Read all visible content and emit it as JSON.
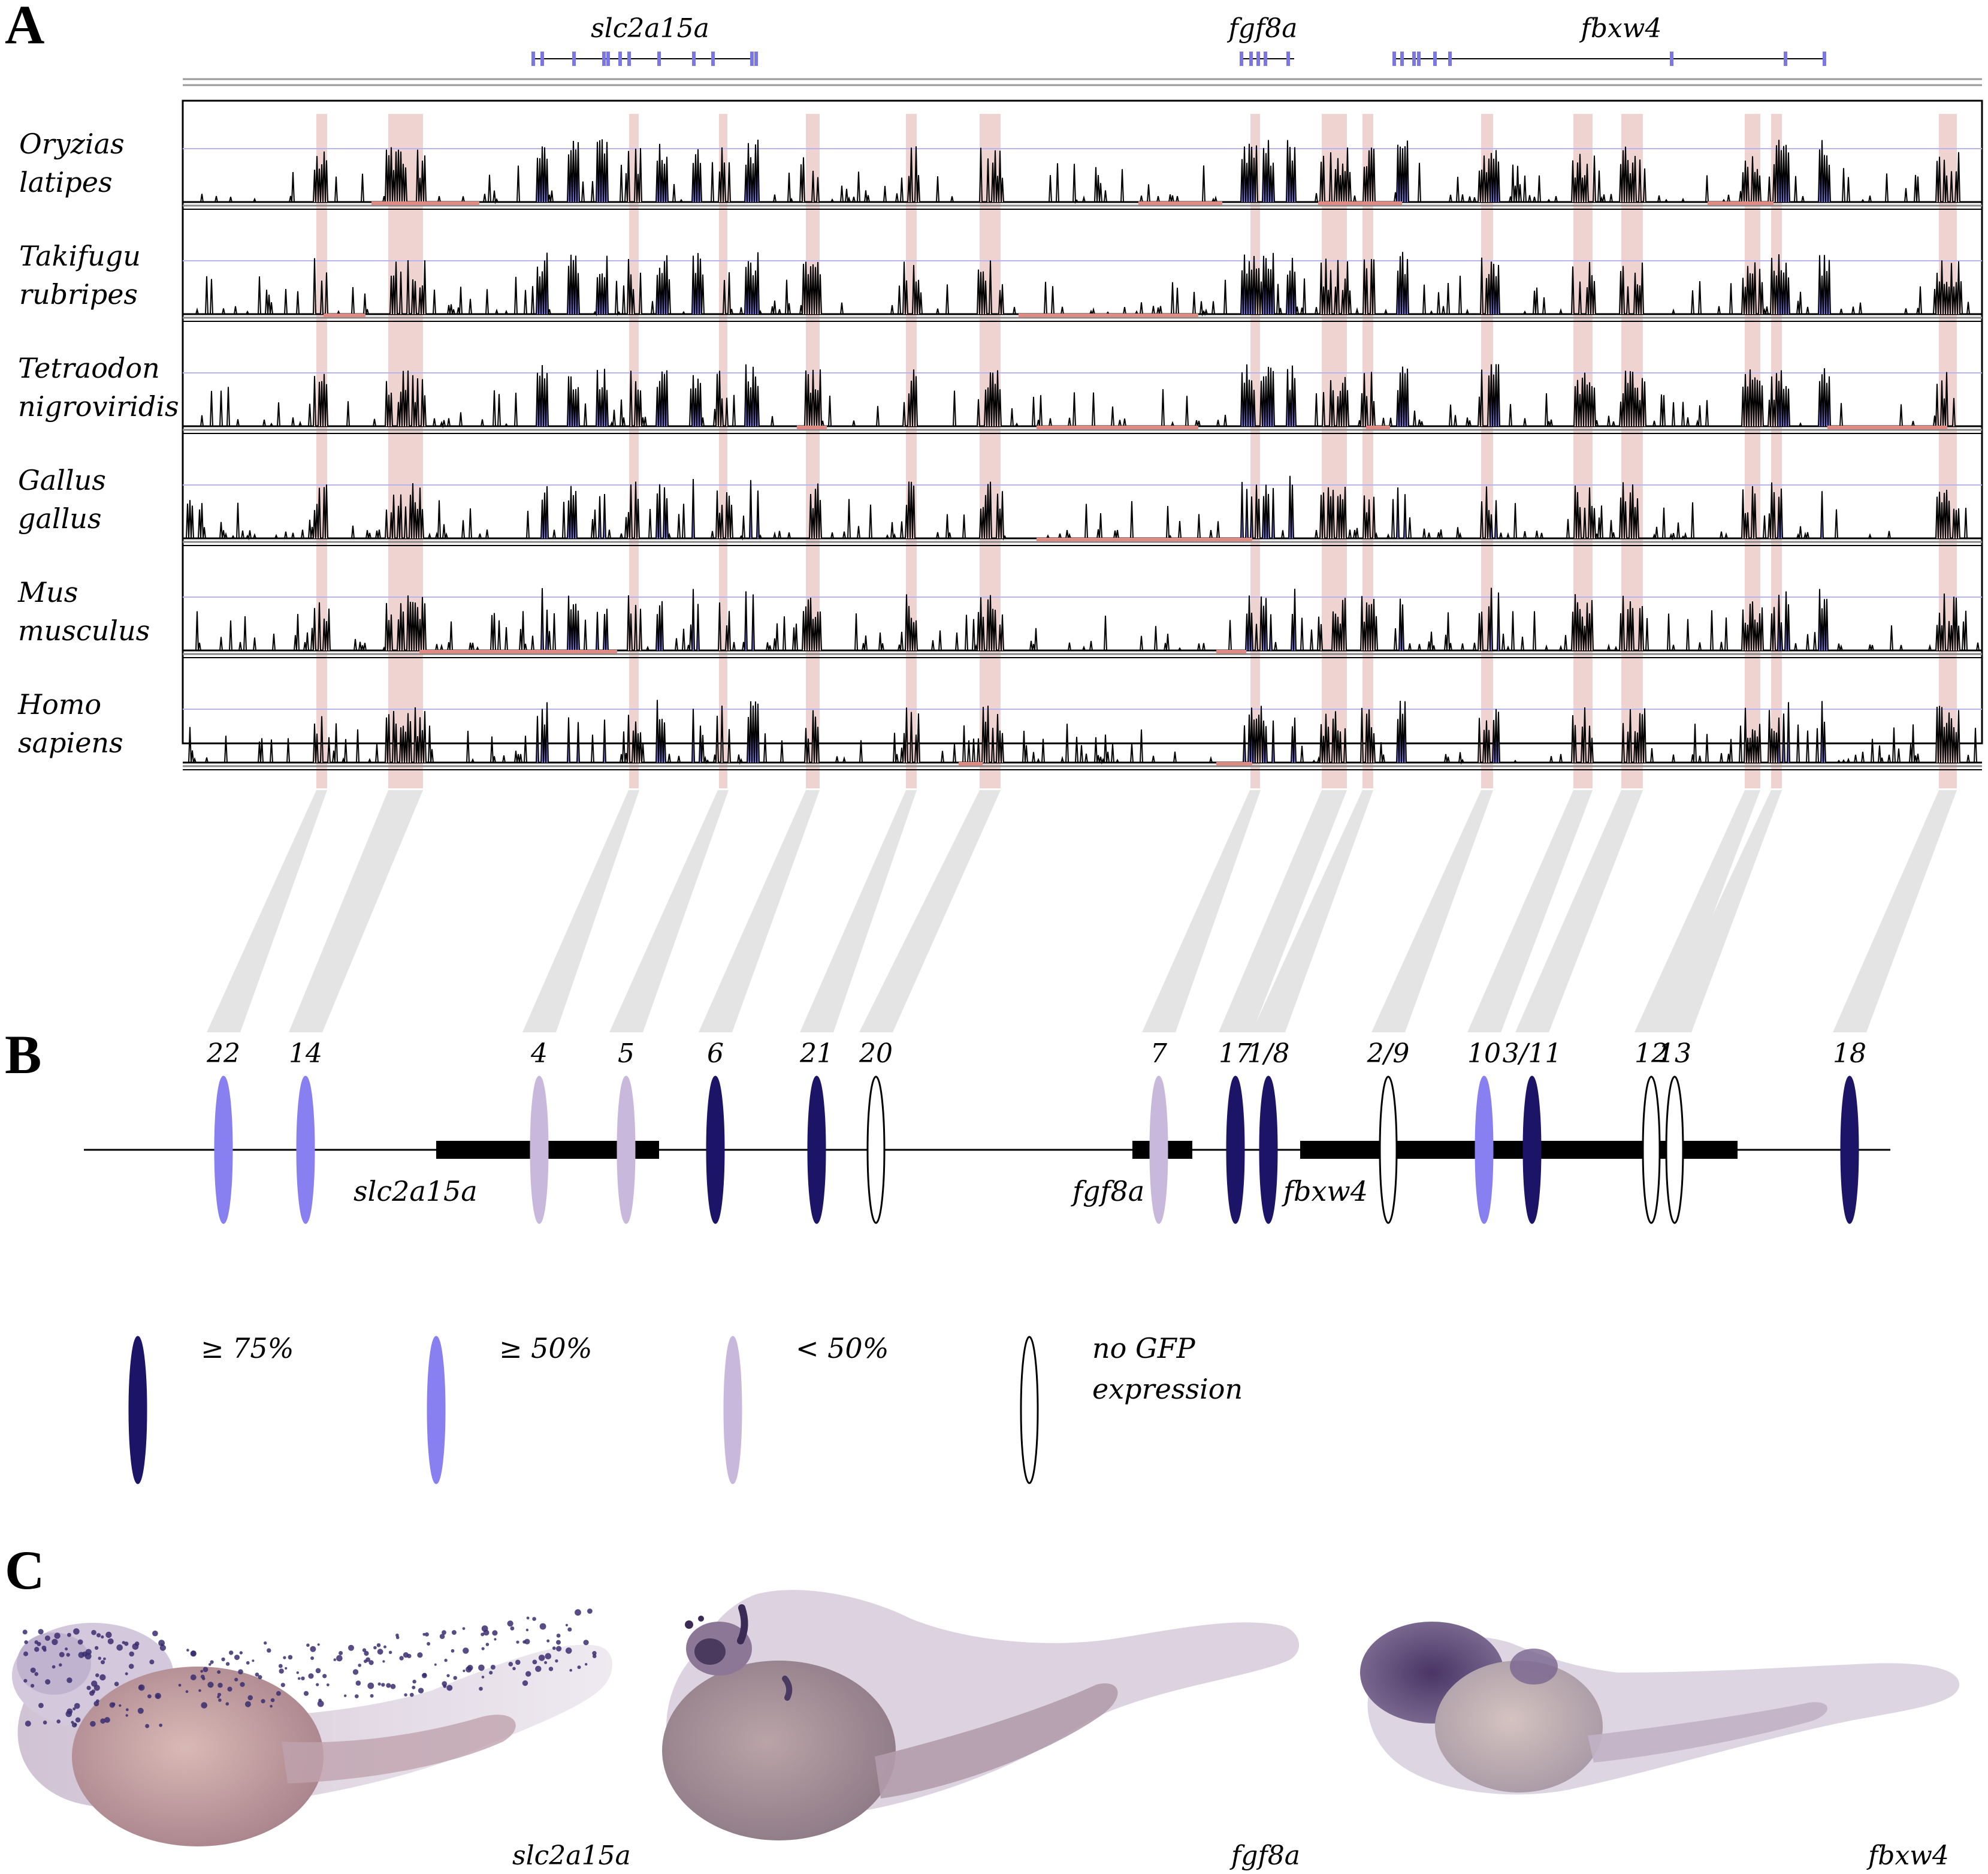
{
  "panels": {
    "a": "A",
    "b": "B",
    "c": "C"
  },
  "genes": [
    "slc2a15a",
    "fgf8a",
    "fbxw4"
  ],
  "species": [
    {
      "line1": "Oryzias",
      "line2": "latipes"
    },
    {
      "line1": "Takifugu",
      "line2": "rubripes"
    },
    {
      "line1": "Tetraodon",
      "line2": "nigroviridis"
    },
    {
      "line1": "Gallus",
      "line2": "gallus"
    },
    {
      "line1": "Mus",
      "line2": "musculus"
    },
    {
      "line1": "Homo",
      "line2": "sapiens"
    }
  ],
  "elements": [
    {
      "label": "22",
      "cls": "ge50"
    },
    {
      "label": "14",
      "cls": "ge50"
    },
    {
      "label": "4",
      "cls": "lt50"
    },
    {
      "label": "5",
      "cls": "lt50"
    },
    {
      "label": "6",
      "cls": "ge75"
    },
    {
      "label": "21",
      "cls": "ge75"
    },
    {
      "label": "20",
      "cls": "none"
    },
    {
      "label": "7",
      "cls": "lt50"
    },
    {
      "label": "17",
      "cls": "ge75"
    },
    {
      "label": "1/8",
      "cls": "ge75"
    },
    {
      "label": "2/9",
      "cls": "none"
    },
    {
      "label": "10",
      "cls": "ge50"
    },
    {
      "label": "3/11",
      "cls": "ge75"
    },
    {
      "label": "12",
      "cls": "none"
    },
    {
      "label": "13",
      "cls": "none"
    },
    {
      "label": "18",
      "cls": "ge75"
    }
  ],
  "legend": [
    {
      "cls": "ge75",
      "line1": "≥ 75%",
      "line2": ""
    },
    {
      "cls": "ge50",
      "line1": "≥ 50%",
      "line2": ""
    },
    {
      "cls": "lt50",
      "line1": "< 50%",
      "line2": ""
    },
    {
      "cls": "none",
      "line1": "no GFP",
      "line2": "expression"
    }
  ],
  "colors": {
    "ge75": "#1c1466",
    "ge50": "#8880f0",
    "lt50": "#c8b8dc",
    "none": "#ffffff",
    "conserved": "#e8c4c2",
    "exon": "#7a76e6",
    "peak_fill": "#f0cfcc",
    "baseline_ref": "#b8b4ee",
    "connector": "#e4e4e4"
  },
  "embryo_captions": [
    "slc2a15a",
    "fgf8a",
    "fbxw4"
  ]
}
